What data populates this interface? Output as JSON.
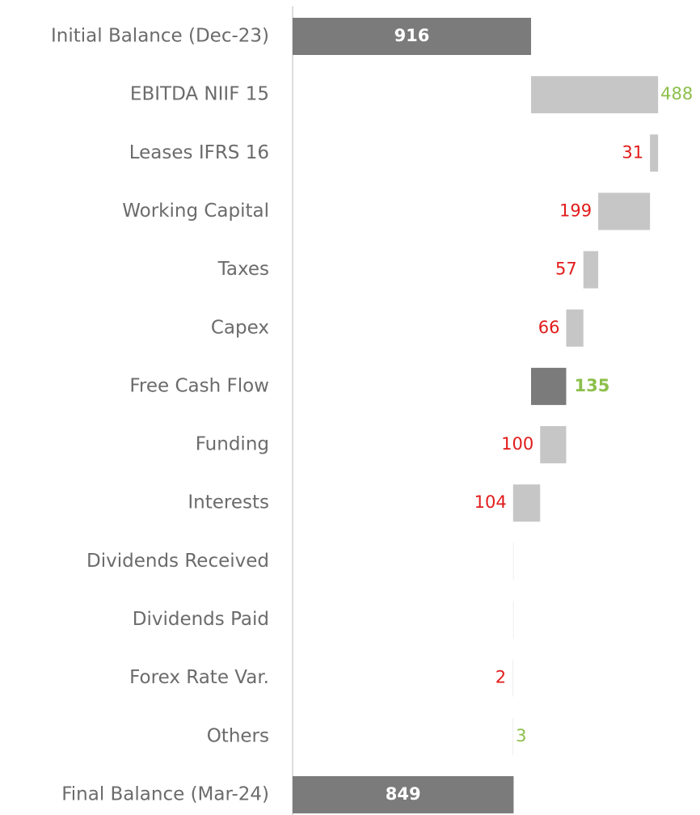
{
  "chart_data": {
    "type": "waterfall",
    "categories": [
      "Initial Balance (Dec-23)",
      "EBITDA NIIF 15",
      "Leases IFRS 16",
      "Working Capital",
      "Taxes",
      "Capex",
      "Free Cash Flow",
      "Funding",
      "Interests",
      "Dividends Received",
      "Dividends Paid",
      "Forex Rate Var.",
      "Others",
      "Final Balance (Mar-24)"
    ],
    "values": [
      916,
      488,
      -31,
      -199,
      -57,
      -66,
      135,
      -100,
      -104,
      0,
      0,
      -2,
      3,
      849
    ],
    "value_labels": [
      "916",
      "488",
      "31",
      "199",
      "57",
      "66",
      "135",
      "100",
      "104",
      null,
      null,
      "2",
      "3",
      "849"
    ],
    "measure": [
      "absolute",
      "relative",
      "relative",
      "relative",
      "relative",
      "relative",
      "subtotal",
      "relative",
      "relative",
      "relative",
      "relative",
      "relative",
      "relative",
      "absolute"
    ],
    "total_color": "#7b7b7b",
    "step_color": "#c6c6c6",
    "increase_color": "#8cbf4a",
    "decrease_color": "#e21b1b",
    "xlim": [
      0,
      1565
    ]
  }
}
